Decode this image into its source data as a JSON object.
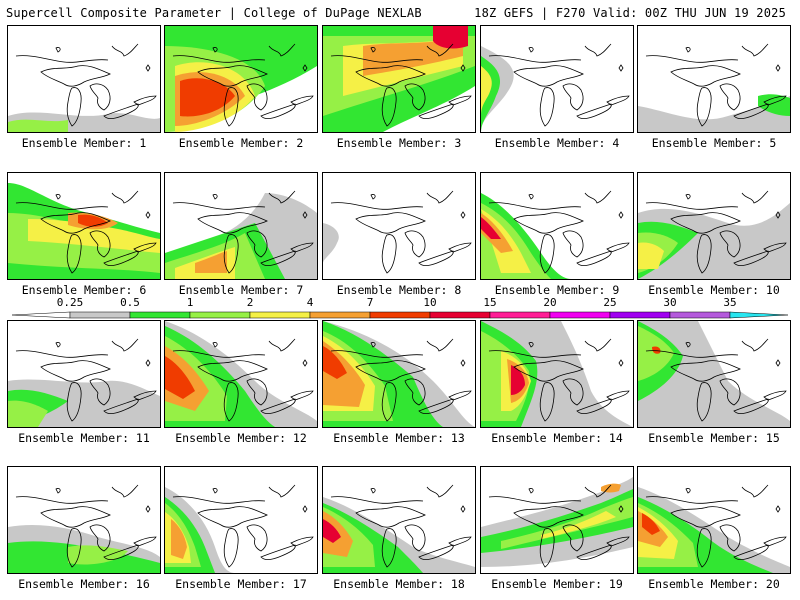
{
  "header": {
    "title": "Supercell Composite Parameter | College of DuPage NEXLAB",
    "run_info": "18Z GEFS | F270 Valid: 00Z THU JUN 19 2025"
  },
  "members": [
    {
      "label": "Ensemble Member: 1"
    },
    {
      "label": "Ensemble Member: 2"
    },
    {
      "label": "Ensemble Member: 3"
    },
    {
      "label": "Ensemble Member: 4"
    },
    {
      "label": "Ensemble Member: 5"
    },
    {
      "label": "Ensemble Member: 6"
    },
    {
      "label": "Ensemble Member: 7"
    },
    {
      "label": "Ensemble Member: 8"
    },
    {
      "label": "Ensemble Member: 9"
    },
    {
      "label": "Ensemble Member: 10"
    },
    {
      "label": "Ensemble Member: 11"
    },
    {
      "label": "Ensemble Member: 12"
    },
    {
      "label": "Ensemble Member: 13"
    },
    {
      "label": "Ensemble Member: 14"
    },
    {
      "label": "Ensemble Member: 15"
    },
    {
      "label": "Ensemble Member: 16"
    },
    {
      "label": "Ensemble Member: 17"
    },
    {
      "label": "Ensemble Member: 18"
    },
    {
      "label": "Ensemble Member: 19"
    },
    {
      "label": "Ensemble Member: 20"
    }
  ],
  "colorbar": {
    "levels": [
      "0.25",
      "0.5",
      "1",
      "2",
      "4",
      "7",
      "10",
      "15",
      "20",
      "25",
      "30",
      "35"
    ],
    "colors": [
      "#c8c8c8",
      "#32e632",
      "#96f046",
      "#f5f046",
      "#f5a032",
      "#f03c00",
      "#e60032",
      "#ff1e96",
      "#f000f0",
      "#a000f0",
      "#b45adc",
      "#28e6f0"
    ]
  }
}
